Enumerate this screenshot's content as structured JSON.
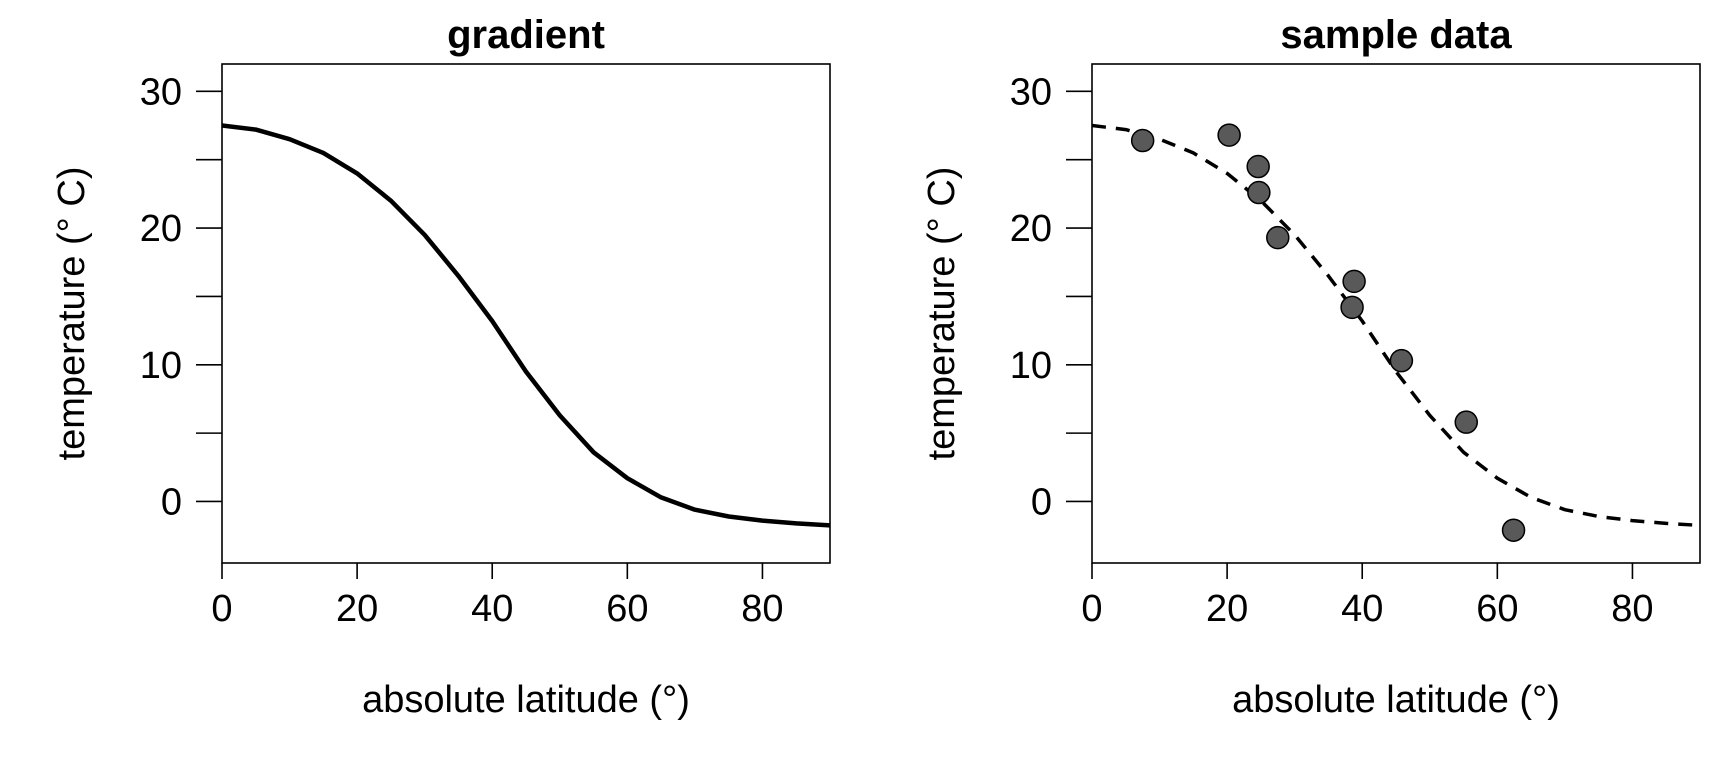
{
  "chart_data": [
    {
      "type": "line",
      "title": "gradient",
      "xlabel": "absolute latitude (°)",
      "ylabel": "temperature (° C)",
      "xlim": [
        0,
        90
      ],
      "ylim": [
        -4.5,
        32
      ],
      "xticks": [
        0,
        20,
        40,
        60,
        80
      ],
      "yticks_labeled": [
        0,
        10,
        20,
        30
      ],
      "yticks_minor": [
        5,
        15,
        25
      ],
      "grid": false,
      "series": [
        {
          "style": "solid",
          "color": "#000000",
          "x": [
            0,
            5,
            10,
            15,
            20,
            25,
            30,
            35,
            40,
            45,
            50,
            55,
            60,
            65,
            70,
            75,
            80,
            85,
            90
          ],
          "y": [
            27.5,
            27.2,
            26.5,
            25.5,
            24.0,
            22.0,
            19.5,
            16.5,
            13.2,
            9.5,
            6.3,
            3.6,
            1.7,
            0.3,
            -0.6,
            -1.1,
            -1.4,
            -1.6,
            -1.75
          ]
        }
      ]
    },
    {
      "type": "scatter",
      "title": "sample data",
      "xlabel": "absolute latitude (°)",
      "ylabel": "temperature (° C)",
      "xlim": [
        0,
        90
      ],
      "ylim": [
        -4.5,
        32
      ],
      "xticks": [
        0,
        20,
        40,
        60,
        80
      ],
      "yticks_labeled": [
        0,
        10,
        20,
        30
      ],
      "yticks_minor": [
        5,
        15,
        25
      ],
      "grid": false,
      "points": {
        "color": "#595959",
        "x": [
          7.5,
          20.3,
          24.6,
          24.7,
          27.5,
          38.5,
          38.8,
          45.8,
          55.4,
          62.4
        ],
        "y": [
          26.4,
          26.8,
          24.5,
          22.6,
          19.3,
          14.2,
          16.1,
          10.3,
          5.8,
          -2.1
        ]
      },
      "series": [
        {
          "style": "dashed",
          "color": "#000000",
          "x": [
            0,
            5,
            10,
            15,
            20,
            25,
            30,
            35,
            40,
            45,
            50,
            55,
            60,
            65,
            70,
            75,
            80,
            85,
            90
          ],
          "y": [
            27.5,
            27.2,
            26.5,
            25.5,
            24.0,
            22.0,
            19.5,
            16.5,
            13.2,
            9.5,
            6.3,
            3.6,
            1.7,
            0.3,
            -0.6,
            -1.1,
            -1.4,
            -1.6,
            -1.75
          ]
        }
      ]
    }
  ]
}
